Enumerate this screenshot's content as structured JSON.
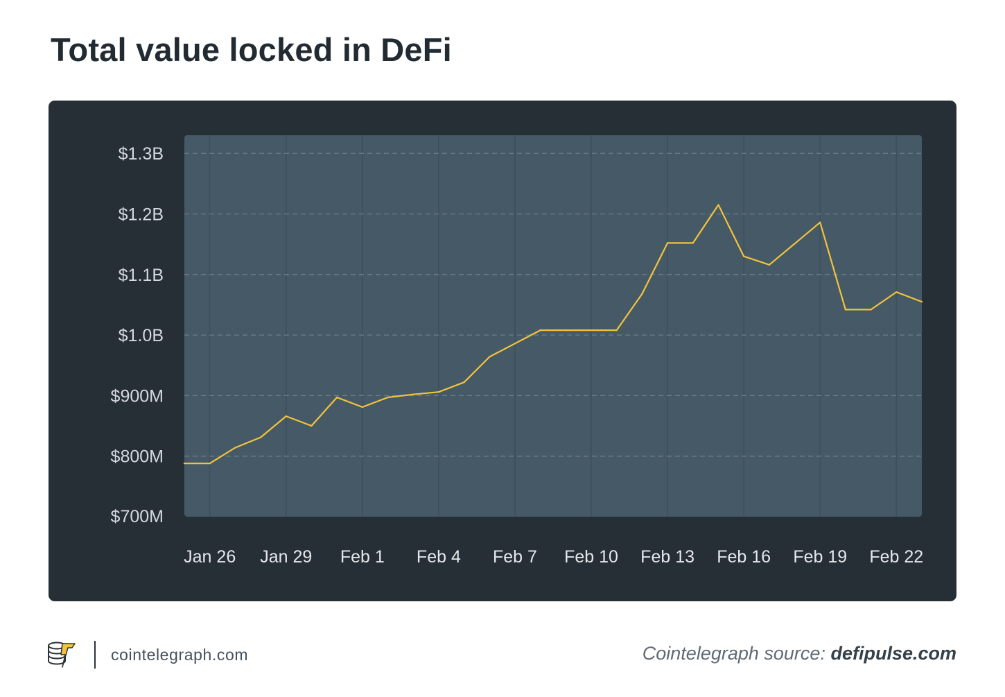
{
  "title": "Total value locked in DeFi",
  "footer": {
    "site": "cointelegraph.com",
    "source_label": "Cointelegraph source: ",
    "source_link": "defipulse.com"
  },
  "colors": {
    "card": "#262e36",
    "plot": "#455a66",
    "line": "#f3c33c",
    "grid": "#6c7f8a"
  },
  "chart_data": {
    "type": "line",
    "title": "Total value locked in DeFi",
    "xlabel": "",
    "ylabel": "",
    "x_ticks": [
      "Jan 26",
      "Jan 29",
      "Feb 1",
      "Feb 4",
      "Feb 7",
      "Feb 10",
      "Feb 13",
      "Feb 16",
      "Feb 19",
      "Feb 22"
    ],
    "y_ticks": [
      "$1.3B",
      "$1.2B",
      "$1.1B",
      "$1.0B",
      "$900M",
      "$800M",
      "$700M"
    ],
    "y_tick_values": [
      1300,
      1200,
      1100,
      1000,
      900,
      800,
      700
    ],
    "ylim": [
      700,
      1330
    ],
    "y_unit": "millions USD",
    "grid": "dashed horizontal and solid vertical",
    "series": [
      {
        "points": [
          [
            "2020-01-25",
            788
          ],
          [
            "2020-01-26",
            788
          ],
          [
            "2020-01-27",
            814
          ],
          [
            "2020-01-28",
            831
          ],
          [
            "2020-01-29",
            866
          ],
          [
            "2020-01-30",
            850
          ],
          [
            "2020-01-31",
            897
          ],
          [
            "2020-02-01",
            881
          ],
          [
            "2020-02-02",
            897
          ],
          [
            "2020-02-03",
            902
          ],
          [
            "2020-02-04",
            906
          ],
          [
            "2020-02-05",
            922
          ],
          [
            "2020-02-06",
            964
          ],
          [
            "2020-02-07",
            986
          ],
          [
            "2020-02-08",
            1008
          ],
          [
            "2020-02-09",
            1008
          ],
          [
            "2020-02-10",
            1008
          ],
          [
            "2020-02-11",
            1008
          ],
          [
            "2020-02-12",
            1068
          ],
          [
            "2020-02-13",
            1152
          ],
          [
            "2020-02-14",
            1152
          ],
          [
            "2020-02-15",
            1215
          ],
          [
            "2020-02-16",
            1130
          ],
          [
            "2020-02-17",
            1116
          ],
          [
            "2020-02-18",
            1151
          ],
          [
            "2020-02-19",
            1186
          ],
          [
            "2020-02-20",
            1042
          ],
          [
            "2020-02-21",
            1042
          ],
          [
            "2020-02-22",
            1071
          ],
          [
            "2020-02-23",
            1055
          ]
        ]
      }
    ]
  }
}
